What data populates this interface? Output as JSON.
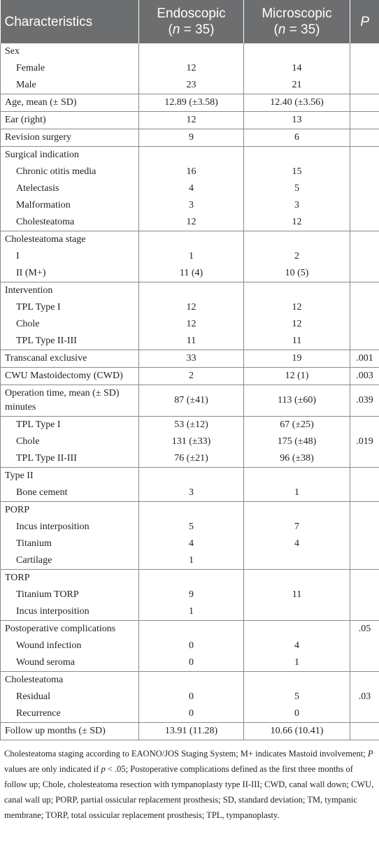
{
  "table": {
    "header": [
      {
        "title": "Characteristics"
      },
      {
        "title": "Endoscopic",
        "subtitle": [
          {
            "text": "("
          },
          {
            "text": "n",
            "italic": true
          },
          {
            "text": " = 35)"
          }
        ]
      },
      {
        "title": "Microscopic",
        "subtitle": [
          {
            "text": "("
          },
          {
            "text": "n",
            "italic": true
          },
          {
            "text": " = 35)"
          }
        ]
      },
      {
        "title": "P",
        "italic": true
      }
    ],
    "groups": [
      {
        "rows": [
          {
            "label": "Sex"
          },
          {
            "label": "Female",
            "indent": true,
            "endoscopic": "12",
            "microscopic": "14"
          },
          {
            "label": "Male",
            "indent": true,
            "endoscopic": "23",
            "microscopic": "21"
          }
        ]
      },
      {
        "rows": [
          {
            "label": "Age, mean (± SD)",
            "endoscopic": "12.89 (±3.58)",
            "microscopic": "12.40 (±3.56)"
          }
        ]
      },
      {
        "rows": [
          {
            "label": "Ear (right)",
            "endoscopic": "12",
            "microscopic": "13"
          }
        ]
      },
      {
        "rows": [
          {
            "label": "Revision surgery",
            "endoscopic": "9",
            "microscopic": "6"
          }
        ]
      },
      {
        "rows": [
          {
            "label": "Surgical indication"
          },
          {
            "label": "Chronic otitis media",
            "indent": true,
            "endoscopic": "16",
            "microscopic": "15"
          },
          {
            "label": "Atelectasis",
            "indent": true,
            "endoscopic": "4",
            "microscopic": "5"
          },
          {
            "label": "Malformation",
            "indent": true,
            "endoscopic": "3",
            "microscopic": "3"
          },
          {
            "label": "Cholesteatoma",
            "indent": true,
            "endoscopic": "12",
            "microscopic": "12"
          }
        ]
      },
      {
        "rows": [
          {
            "label": "Cholesteatoma stage"
          },
          {
            "label": "I",
            "indent": true,
            "endoscopic": "1",
            "microscopic": "2"
          },
          {
            "label": "II (M+)",
            "indent": true,
            "endoscopic": "11 (4)",
            "microscopic": "10 (5)"
          }
        ]
      },
      {
        "rows": [
          {
            "label": "Intervention"
          },
          {
            "label": "TPL Type I",
            "indent": true,
            "endoscopic": "12",
            "microscopic": "12"
          },
          {
            "label": "Chole",
            "indent": true,
            "endoscopic": "12",
            "microscopic": "12"
          },
          {
            "label": "TPL Type II-III",
            "indent": true,
            "endoscopic": "11",
            "microscopic": "11"
          }
        ]
      },
      {
        "rows": [
          {
            "label": "Transcanal exclusive",
            "endoscopic": "33",
            "microscopic": "19",
            "p": ".001"
          }
        ]
      },
      {
        "rows": [
          {
            "label": "CWU Mastoidectomy (CWD)",
            "endoscopic": "2",
            "microscopic": "12 (1)",
            "p": ".003"
          }
        ]
      },
      {
        "rows": [
          {
            "label": "Operation time, mean (± SD) minutes",
            "endoscopic": "87 (±41)",
            "microscopic": "113 (±60)",
            "p": ".039"
          }
        ]
      },
      {
        "rows": [
          {
            "label": "TPL Type I",
            "indent": true,
            "endoscopic": "53 (±12)",
            "microscopic": "67 (±25)"
          },
          {
            "label": "Chole",
            "indent": true,
            "endoscopic": "131 (±33)",
            "microscopic": "175 (±48)",
            "p": ".019"
          },
          {
            "label": "TPL Type II-III",
            "indent": true,
            "endoscopic": "76 (±21)",
            "microscopic": "96 (±38)"
          }
        ]
      },
      {
        "rows": [
          {
            "label": "Type II"
          },
          {
            "label": "Bone cement",
            "indent": true,
            "endoscopic": "3",
            "microscopic": "1"
          }
        ]
      },
      {
        "rows": [
          {
            "label": "PORP"
          },
          {
            "label": "Incus interposition",
            "indent": true,
            "endoscopic": "5",
            "microscopic": "7"
          },
          {
            "label": "Titanium",
            "indent": true,
            "endoscopic": "4",
            "microscopic": "4"
          },
          {
            "label": "Cartilage",
            "indent": true,
            "endoscopic": "1"
          }
        ]
      },
      {
        "rows": [
          {
            "label": "TORP"
          },
          {
            "label": "Titanium TORP",
            "indent": true,
            "endoscopic": "9",
            "microscopic": "11"
          },
          {
            "label": "Incus interposition",
            "indent": true,
            "endoscopic": "1"
          }
        ]
      },
      {
        "rows": [
          {
            "label": "Postoperative complications",
            "p": ".05"
          },
          {
            "label": "Wound infection",
            "indent": true,
            "endoscopic": "0",
            "microscopic": "4"
          },
          {
            "label": "Wound seroma",
            "indent": true,
            "endoscopic": "0",
            "microscopic": "1"
          }
        ]
      },
      {
        "rows": [
          {
            "label": "Cholesteatoma"
          },
          {
            "label": "Residual",
            "indent": true,
            "endoscopic": "0",
            "microscopic": "5",
            "p": ".03"
          },
          {
            "label": "Recurrence",
            "indent": true,
            "endoscopic": "0",
            "microscopic": "0"
          }
        ]
      },
      {
        "rows": [
          {
            "label": "Follow up months (± SD)",
            "endoscopic": "13.91 (11.28)",
            "microscopic": "10.66 (10.41)"
          }
        ]
      }
    ],
    "footnote": [
      {
        "text": "Cholesteatoma staging according to EAONO/JOS Staging System; M+ indicates Mastoid involvement; "
      },
      {
        "text": "P",
        "italic": true
      },
      {
        "text": " values are only indicated if "
      },
      {
        "text": "p",
        "italic": true
      },
      {
        "text": " < .05; Postoperative complications defined as the first three months of follow up; Chole, cholesteatoma resection with tympanoplasty type II-III; CWD, canal wall down; CWU, canal wall up; PORP, partial ossicular replacement prosthesis; SD, standard deviation; TM, tympanic membrane; TORP, total ossicular replacement prosthesis; TPL, tympanoplasty."
      }
    ]
  }
}
